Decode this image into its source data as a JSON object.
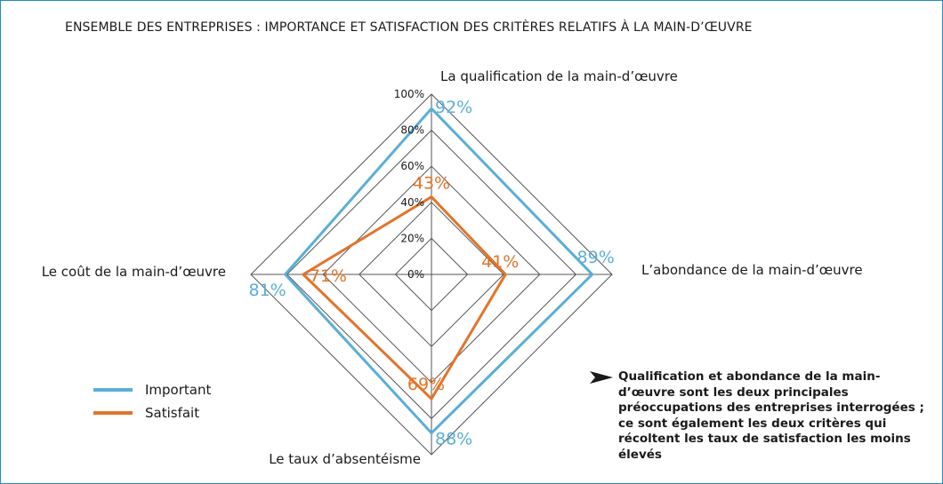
{
  "title": "ENSEMBLE DES ENTREPRISES : IMPORTANCE ET SATISFACTION DES CRITÈRES RELATIFS À LA MAIN-D’ŒUVRE",
  "chart_data": {
    "type": "radar",
    "categories": [
      "La qualification de la main-d’œuvre",
      "L’abondance de la main-d’œuvre",
      "Le taux d’absentéisme",
      "Le coût de la main-d’œuvre"
    ],
    "series": [
      {
        "name": "Important",
        "color": "#5aaed6",
        "values": [
          92,
          89,
          88,
          81
        ],
        "labels": [
          "92%",
          "89%",
          "88%",
          "81%"
        ]
      },
      {
        "name": "Satisfait",
        "color": "#e2742a",
        "values": [
          43,
          41,
          69,
          71
        ],
        "labels": [
          "43%",
          "41%",
          "69%",
          "71%"
        ]
      }
    ],
    "rlim": [
      0,
      100
    ],
    "ticks": [
      "0%",
      "20%",
      "40%",
      "60%",
      "80%",
      "100%"
    ],
    "tick_values": [
      0,
      20,
      40,
      60,
      80,
      100
    ],
    "grid_color": "#555555",
    "legend_position": "bottom-left"
  },
  "note": "Qualification et abondance de la main-d’œuvre sont les deux principales préoccupations des entreprises interrogées ; ce sont également les deux critères qui récoltent les taux de satisfaction les moins élevés"
}
